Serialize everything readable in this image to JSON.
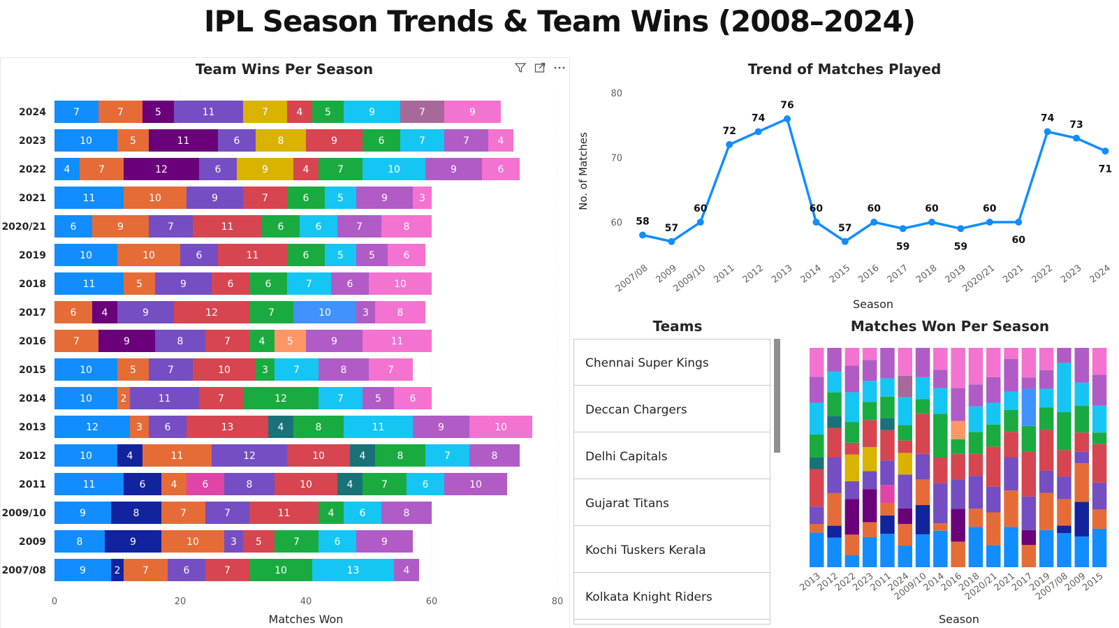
{
  "page": {
    "title": "IPL Season Trends & Team Wins (2008–2024)"
  },
  "colors": {
    "blue": "#118dff",
    "orange": "#e66c37",
    "purple": "#6b007b",
    "violet": "#744ec2",
    "gold": "#d9b300",
    "red": "#d64550",
    "green": "#1aab40",
    "cyan": "#15c6f4",
    "lilac": "#a66999",
    "pink": "#f472d0",
    "navy": "#12239e",
    "teal": "#197278",
    "magenta": "#e044a7",
    "lightorange": "#fe9666",
    "lightblue": "#4092ff",
    "mauve": "#b05bc6"
  },
  "header_icons": [
    "filter-icon",
    "focus-mode-icon",
    "more-options-icon"
  ],
  "chart_data": [
    {
      "type": "bar",
      "orientation": "horizontal",
      "stacked": true,
      "title": "Team Wins Per Season",
      "xlabel": "Matches Won",
      "ylabel": "",
      "xlim": [
        0,
        80
      ],
      "xticks": [
        "0",
        "20",
        "40",
        "60",
        "80"
      ],
      "grid": true,
      "categories": [
        "2024",
        "2023",
        "2022",
        "2021",
        "2020/21",
        "2019",
        "2018",
        "2017",
        "2016",
        "2015",
        "2014",
        "2013",
        "2012",
        "2011",
        "2009/10",
        "2009",
        "2007/08"
      ],
      "rows": [
        [
          [
            7,
            "blue"
          ],
          [
            7,
            "orange"
          ],
          [
            5,
            "purple"
          ],
          [
            11,
            "violet"
          ],
          [
            7,
            "gold"
          ],
          [
            4,
            "red"
          ],
          [
            5,
            "green"
          ],
          [
            9,
            "cyan"
          ],
          [
            7,
            "lilac"
          ],
          [
            9,
            "pink"
          ]
        ],
        [
          [
            10,
            "blue"
          ],
          [
            5,
            "orange"
          ],
          [
            11,
            "purple"
          ],
          [
            6,
            "violet"
          ],
          [
            8,
            "gold"
          ],
          [
            9,
            "red"
          ],
          [
            6,
            "green"
          ],
          [
            7,
            "cyan"
          ],
          [
            7,
            "mauve"
          ],
          [
            4,
            "pink"
          ]
        ],
        [
          [
            4,
            "blue"
          ],
          [
            7,
            "orange"
          ],
          [
            12,
            "purple"
          ],
          [
            6,
            "violet"
          ],
          [
            9,
            "gold"
          ],
          [
            4,
            "red"
          ],
          [
            7,
            "green"
          ],
          [
            10,
            "cyan"
          ],
          [
            9,
            "mauve"
          ],
          [
            6,
            "pink"
          ]
        ],
        [
          [
            11,
            "blue"
          ],
          [
            10,
            "orange"
          ],
          [
            9,
            "violet"
          ],
          [
            7,
            "red"
          ],
          [
            6,
            "green"
          ],
          [
            5,
            "cyan"
          ],
          [
            9,
            "mauve"
          ],
          [
            3,
            "pink"
          ]
        ],
        [
          [
            6,
            "blue"
          ],
          [
            9,
            "orange"
          ],
          [
            7,
            "violet"
          ],
          [
            11,
            "red"
          ],
          [
            6,
            "green"
          ],
          [
            6,
            "cyan"
          ],
          [
            7,
            "mauve"
          ],
          [
            8,
            "pink"
          ]
        ],
        [
          [
            10,
            "blue"
          ],
          [
            10,
            "orange"
          ],
          [
            6,
            "violet"
          ],
          [
            11,
            "red"
          ],
          [
            6,
            "green"
          ],
          [
            5,
            "cyan"
          ],
          [
            5,
            "mauve"
          ],
          [
            6,
            "pink"
          ]
        ],
        [
          [
            11,
            "blue"
          ],
          [
            5,
            "orange"
          ],
          [
            9,
            "violet"
          ],
          [
            6,
            "red"
          ],
          [
            6,
            "green"
          ],
          [
            7,
            "cyan"
          ],
          [
            6,
            "mauve"
          ],
          [
            10,
            "pink"
          ]
        ],
        [
          [
            6,
            "orange"
          ],
          [
            4,
            "purple"
          ],
          [
            9,
            "violet"
          ],
          [
            12,
            "red"
          ],
          [
            7,
            "green"
          ],
          [
            10,
            "lightblue"
          ],
          [
            3,
            "mauve"
          ],
          [
            8,
            "pink"
          ]
        ],
        [
          [
            7,
            "orange"
          ],
          [
            9,
            "purple"
          ],
          [
            8,
            "violet"
          ],
          [
            7,
            "red"
          ],
          [
            4,
            "green"
          ],
          [
            5,
            "lightorange"
          ],
          [
            9,
            "mauve"
          ],
          [
            11,
            "pink"
          ]
        ],
        [
          [
            10,
            "blue"
          ],
          [
            5,
            "orange"
          ],
          [
            7,
            "violet"
          ],
          [
            10,
            "red"
          ],
          [
            3,
            "green"
          ],
          [
            7,
            "cyan"
          ],
          [
            8,
            "mauve"
          ],
          [
            7,
            "pink"
          ]
        ],
        [
          [
            10,
            "blue"
          ],
          [
            2,
            "orange"
          ],
          [
            11,
            "violet"
          ],
          [
            7,
            "red"
          ],
          [
            12,
            "green"
          ],
          [
            7,
            "cyan"
          ],
          [
            5,
            "mauve"
          ],
          [
            6,
            "pink"
          ]
        ],
        [
          [
            12,
            "blue"
          ],
          [
            3,
            "orange"
          ],
          [
            6,
            "violet"
          ],
          [
            13,
            "red"
          ],
          [
            4,
            "teal"
          ],
          [
            8,
            "green"
          ],
          [
            11,
            "cyan"
          ],
          [
            9,
            "mauve"
          ],
          [
            10,
            "pink"
          ]
        ],
        [
          [
            10,
            "blue"
          ],
          [
            4,
            "navy"
          ],
          [
            11,
            "orange"
          ],
          [
            12,
            "violet"
          ],
          [
            10,
            "red"
          ],
          [
            4,
            "teal"
          ],
          [
            8,
            "green"
          ],
          [
            7,
            "cyan"
          ],
          [
            8,
            "mauve"
          ]
        ],
        [
          [
            11,
            "blue"
          ],
          [
            6,
            "navy"
          ],
          [
            4,
            "orange"
          ],
          [
            6,
            "magenta"
          ],
          [
            8,
            "violet"
          ],
          [
            10,
            "red"
          ],
          [
            4,
            "teal"
          ],
          [
            7,
            "green"
          ],
          [
            6,
            "cyan"
          ],
          [
            10,
            "mauve"
          ]
        ],
        [
          [
            9,
            "blue"
          ],
          [
            8,
            "navy"
          ],
          [
            7,
            "orange"
          ],
          [
            7,
            "violet"
          ],
          [
            11,
            "red"
          ],
          [
            4,
            "green"
          ],
          [
            6,
            "cyan"
          ],
          [
            8,
            "mauve"
          ]
        ],
        [
          [
            8,
            "blue"
          ],
          [
            9,
            "navy"
          ],
          [
            10,
            "orange"
          ],
          [
            3,
            "violet"
          ],
          [
            5,
            "red"
          ],
          [
            7,
            "green"
          ],
          [
            6,
            "cyan"
          ],
          [
            9,
            "mauve"
          ]
        ],
        [
          [
            9,
            "blue"
          ],
          [
            2,
            "navy"
          ],
          [
            7,
            "orange"
          ],
          [
            6,
            "violet"
          ],
          [
            7,
            "red"
          ],
          [
            10,
            "green"
          ],
          [
            13,
            "cyan"
          ],
          [
            4,
            "mauve"
          ]
        ]
      ]
    },
    {
      "type": "line",
      "title": "Trend of Matches Played",
      "xlabel": "Season",
      "ylabel": "No. of Matches",
      "ylim": [
        55,
        80
      ],
      "yticks": [
        "60",
        "70",
        "80"
      ],
      "x": [
        "2007/08",
        "2009",
        "2009/10",
        "2011",
        "2012",
        "2013",
        "2014",
        "2015",
        "2016",
        "2017",
        "2018",
        "2019",
        "2020/21",
        "2021",
        "2022",
        "2023",
        "2024"
      ],
      "y": [
        58,
        57,
        60,
        72,
        74,
        76,
        60,
        57,
        60,
        59,
        60,
        59,
        60,
        60,
        74,
        73,
        71
      ],
      "label_below": [
        false,
        false,
        false,
        false,
        false,
        false,
        false,
        false,
        false,
        true,
        false,
        true,
        false,
        true,
        false,
        false,
        true
      ],
      "color": "#118dff"
    },
    {
      "type": "bar",
      "orientation": "vertical",
      "stacked": true,
      "normalized": true,
      "title": "Matches Won Per Season",
      "xlabel": "Season",
      "categories": [
        "2013",
        "2012",
        "2022",
        "2023",
        "2011",
        "2024",
        "2009/10",
        "2014",
        "2016",
        "2018",
        "2020/21",
        "2021",
        "2017",
        "2019",
        "2007/08",
        "2009",
        "2015"
      ],
      "source_rows": [
        11,
        12,
        2,
        1,
        13,
        0,
        14,
        10,
        8,
        6,
        4,
        3,
        7,
        5,
        16,
        15,
        9
      ]
    }
  ],
  "slicer": {
    "title": "Teams",
    "items": [
      "Chennai Super Kings",
      "Deccan Chargers",
      "Delhi Capitals",
      "Gujarat Titans",
      "Kochi Tuskers Kerala",
      "Kolkata Knight Riders"
    ]
  }
}
